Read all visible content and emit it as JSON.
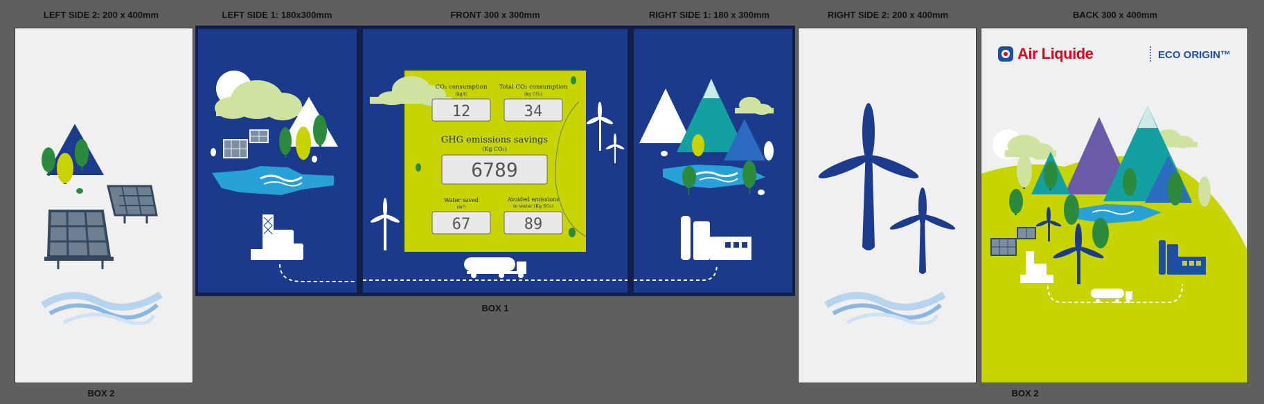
{
  "labels": {
    "left2": "LEFT SIDE 2: 200 x 400mm",
    "left1": "LEFT SIDE 1: 180x300mm",
    "front": "FRONT 300 x 300mm",
    "right1": "RIGHT SIDE 1: 180 x 300mm",
    "right2": "RIGHT SIDE 2: 200 x 400mm",
    "back": "BACK 300 x 400mm",
    "box1": "BOX 1",
    "box2_left": "BOX 2",
    "box2_right": "BOX 2"
  },
  "front_card": {
    "co2_consumption_label": "CO₂ consumption",
    "co2_consumption_unit": "(kg/t)",
    "co2_consumption_value": "12",
    "total_co2_label": "Total CO₂ consumption",
    "total_co2_unit": "(kg CO₂)",
    "total_co2_value": "34",
    "ghg_label": "GHG emissions savings",
    "ghg_unit": "(Kg CO₂)",
    "ghg_value": "6789",
    "water_saved_label": "Water saved",
    "water_saved_unit": "(m³)",
    "water_saved_value": "67",
    "avoided_label": "Avoided emissions",
    "avoided_label2": "to water (Kg SO₂)",
    "avoided_value": "89"
  },
  "back": {
    "brand_name": "Air Liquide",
    "eco_label": "ECO ORIGIN™"
  },
  "colors": {
    "background": "#5f5f5f",
    "panel_blue": "#1c3a8c",
    "panel_white": "#f0f0f0",
    "lime": "#c8d400",
    "brand_red": "#e2001a",
    "brand_blue": "#1d4ea0"
  }
}
